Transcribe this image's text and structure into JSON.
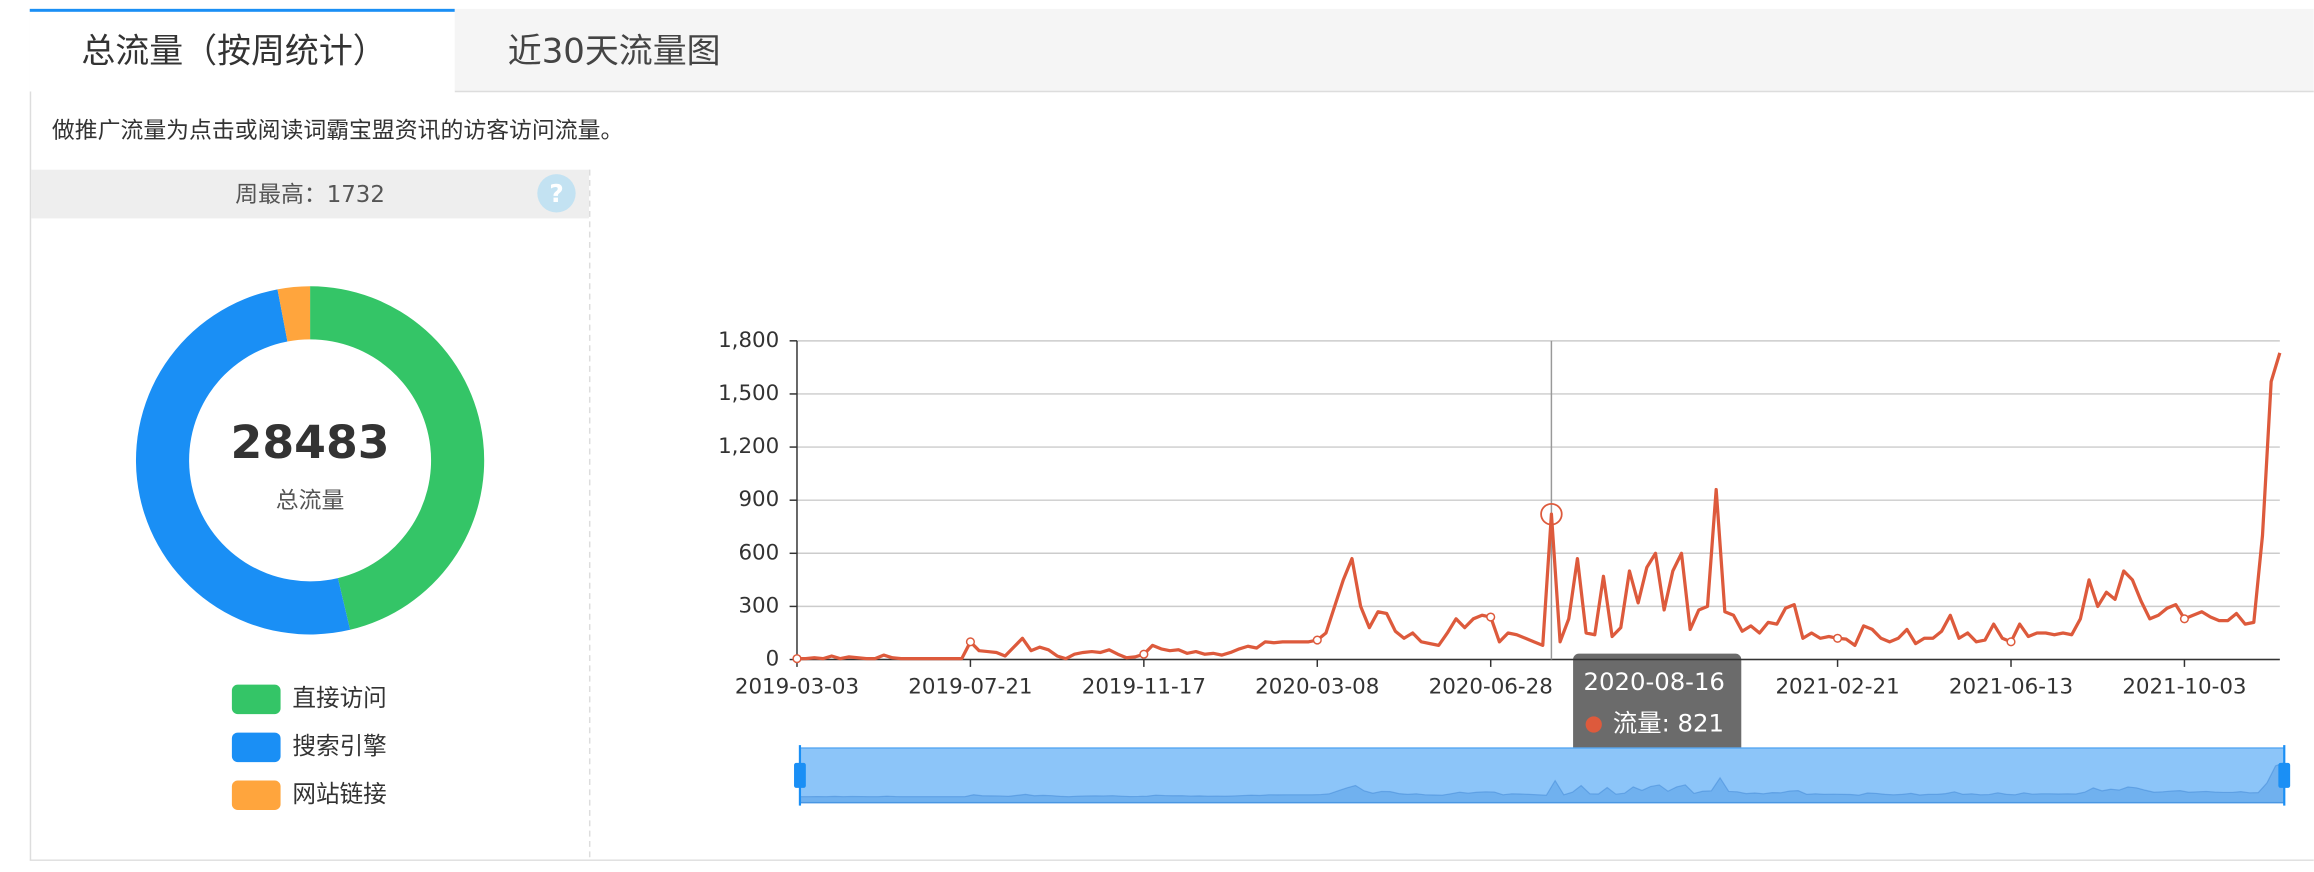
{
  "tabs": [
    "总流量（按周统计）",
    "近30天流量图"
  ],
  "description": "做推广流量为点击或阅读词霸宝盟资讯的访客访问流量。",
  "peak": {
    "label": "周最高：",
    "value": 1732
  },
  "help_icon": "?",
  "tooltip_separator": ": ",
  "chart_data": [
    {
      "type": "pie",
      "center_value": 28483,
      "center_label": "总流量",
      "categories": [
        "直接访问",
        "搜索引擎",
        "网站链接"
      ],
      "values": [
        13190,
        14440,
        853
      ],
      "colors": [
        "#34c567",
        "#1a8ff5",
        "#ffa53d"
      ]
    },
    {
      "type": "line",
      "categories": [
        "2019-03-03",
        null,
        null,
        null,
        null,
        null,
        null,
        null,
        null,
        null,
        null,
        null,
        null,
        null,
        null,
        null,
        null,
        null,
        null,
        null,
        "2019-07-21",
        null,
        null,
        null,
        null,
        null,
        null,
        null,
        null,
        null,
        null,
        null,
        null,
        null,
        null,
        null,
        null,
        null,
        null,
        null,
        "2019-11-17",
        null,
        null,
        null,
        null,
        null,
        null,
        null,
        null,
        null,
        null,
        null,
        null,
        null,
        null,
        null,
        null,
        null,
        null,
        null,
        "2020-03-08",
        null,
        null,
        null,
        null,
        null,
        null,
        null,
        null,
        null,
        null,
        null,
        null,
        null,
        null,
        null,
        null,
        null,
        null,
        null,
        "2020-06-28",
        null,
        null,
        null,
        null,
        null,
        null,
        "2020-08-16",
        null,
        null,
        null,
        null,
        null,
        null,
        null,
        null,
        null,
        null,
        null,
        null,
        null,
        null,
        null,
        null,
        null,
        null,
        null,
        null,
        null,
        null,
        null,
        null,
        null,
        null,
        null,
        null,
        null,
        null,
        null,
        null,
        "2021-02-21",
        null,
        null,
        null,
        null,
        null,
        null,
        null,
        null,
        null,
        null,
        null,
        null,
        null,
        null,
        null,
        null,
        null,
        null,
        null,
        "2021-06-13",
        null,
        null,
        null,
        null,
        null,
        null,
        null,
        null,
        null,
        null,
        null,
        null,
        null,
        null,
        null,
        null,
        null,
        null,
        null,
        "2021-10-03",
        null,
        null,
        null,
        null,
        null,
        null,
        null,
        null,
        null,
        null,
        null
      ],
      "series": [
        {
          "name": "流量",
          "color": "#dd5a3c",
          "values": [
            5,
            5,
            10,
            5,
            20,
            5,
            15,
            10,
            5,
            5,
            25,
            10,
            5,
            5,
            5,
            5,
            5,
            5,
            5,
            5,
            100,
            50,
            45,
            40,
            20,
            70,
            120,
            50,
            70,
            55,
            20,
            5,
            30,
            40,
            45,
            40,
            55,
            30,
            10,
            15,
            30,
            80,
            60,
            50,
            55,
            35,
            45,
            30,
            35,
            25,
            40,
            60,
            75,
            65,
            100,
            95,
            100,
            100,
            100,
            100,
            110,
            150,
            300,
            450,
            570,
            300,
            180,
            270,
            260,
            160,
            120,
            150,
            100,
            90,
            80,
            150,
            230,
            180,
            230,
            250,
            240,
            100,
            150,
            140,
            120,
            100,
            80,
            821,
            100,
            230,
            570,
            150,
            140,
            470,
            130,
            180,
            500,
            320,
            520,
            600,
            280,
            500,
            600,
            170,
            280,
            300,
            960,
            270,
            250,
            160,
            190,
            150,
            210,
            200,
            290,
            310,
            120,
            150,
            120,
            130,
            120,
            115,
            80,
            190,
            170,
            120,
            100,
            120,
            170,
            90,
            120,
            120,
            160,
            250,
            120,
            150,
            100,
            110,
            200,
            120,
            100,
            200,
            130,
            150,
            150,
            140,
            150,
            140,
            230,
            450,
            300,
            380,
            340,
            500,
            450,
            330,
            230,
            250,
            290,
            310,
            230,
            250,
            270,
            240,
            220,
            220,
            260,
            200,
            210,
            700,
            1570,
            1732
          ]
        }
      ],
      "ylim": [
        0,
        1800
      ],
      "yticks": [
        0,
        300,
        600,
        900,
        {
          "value": 1200,
          "label": "1,200"
        },
        {
          "value": 1500,
          "label": "1,500"
        },
        {
          "value": 1800,
          "label": "1,800"
        }
      ],
      "grid": true
    }
  ]
}
